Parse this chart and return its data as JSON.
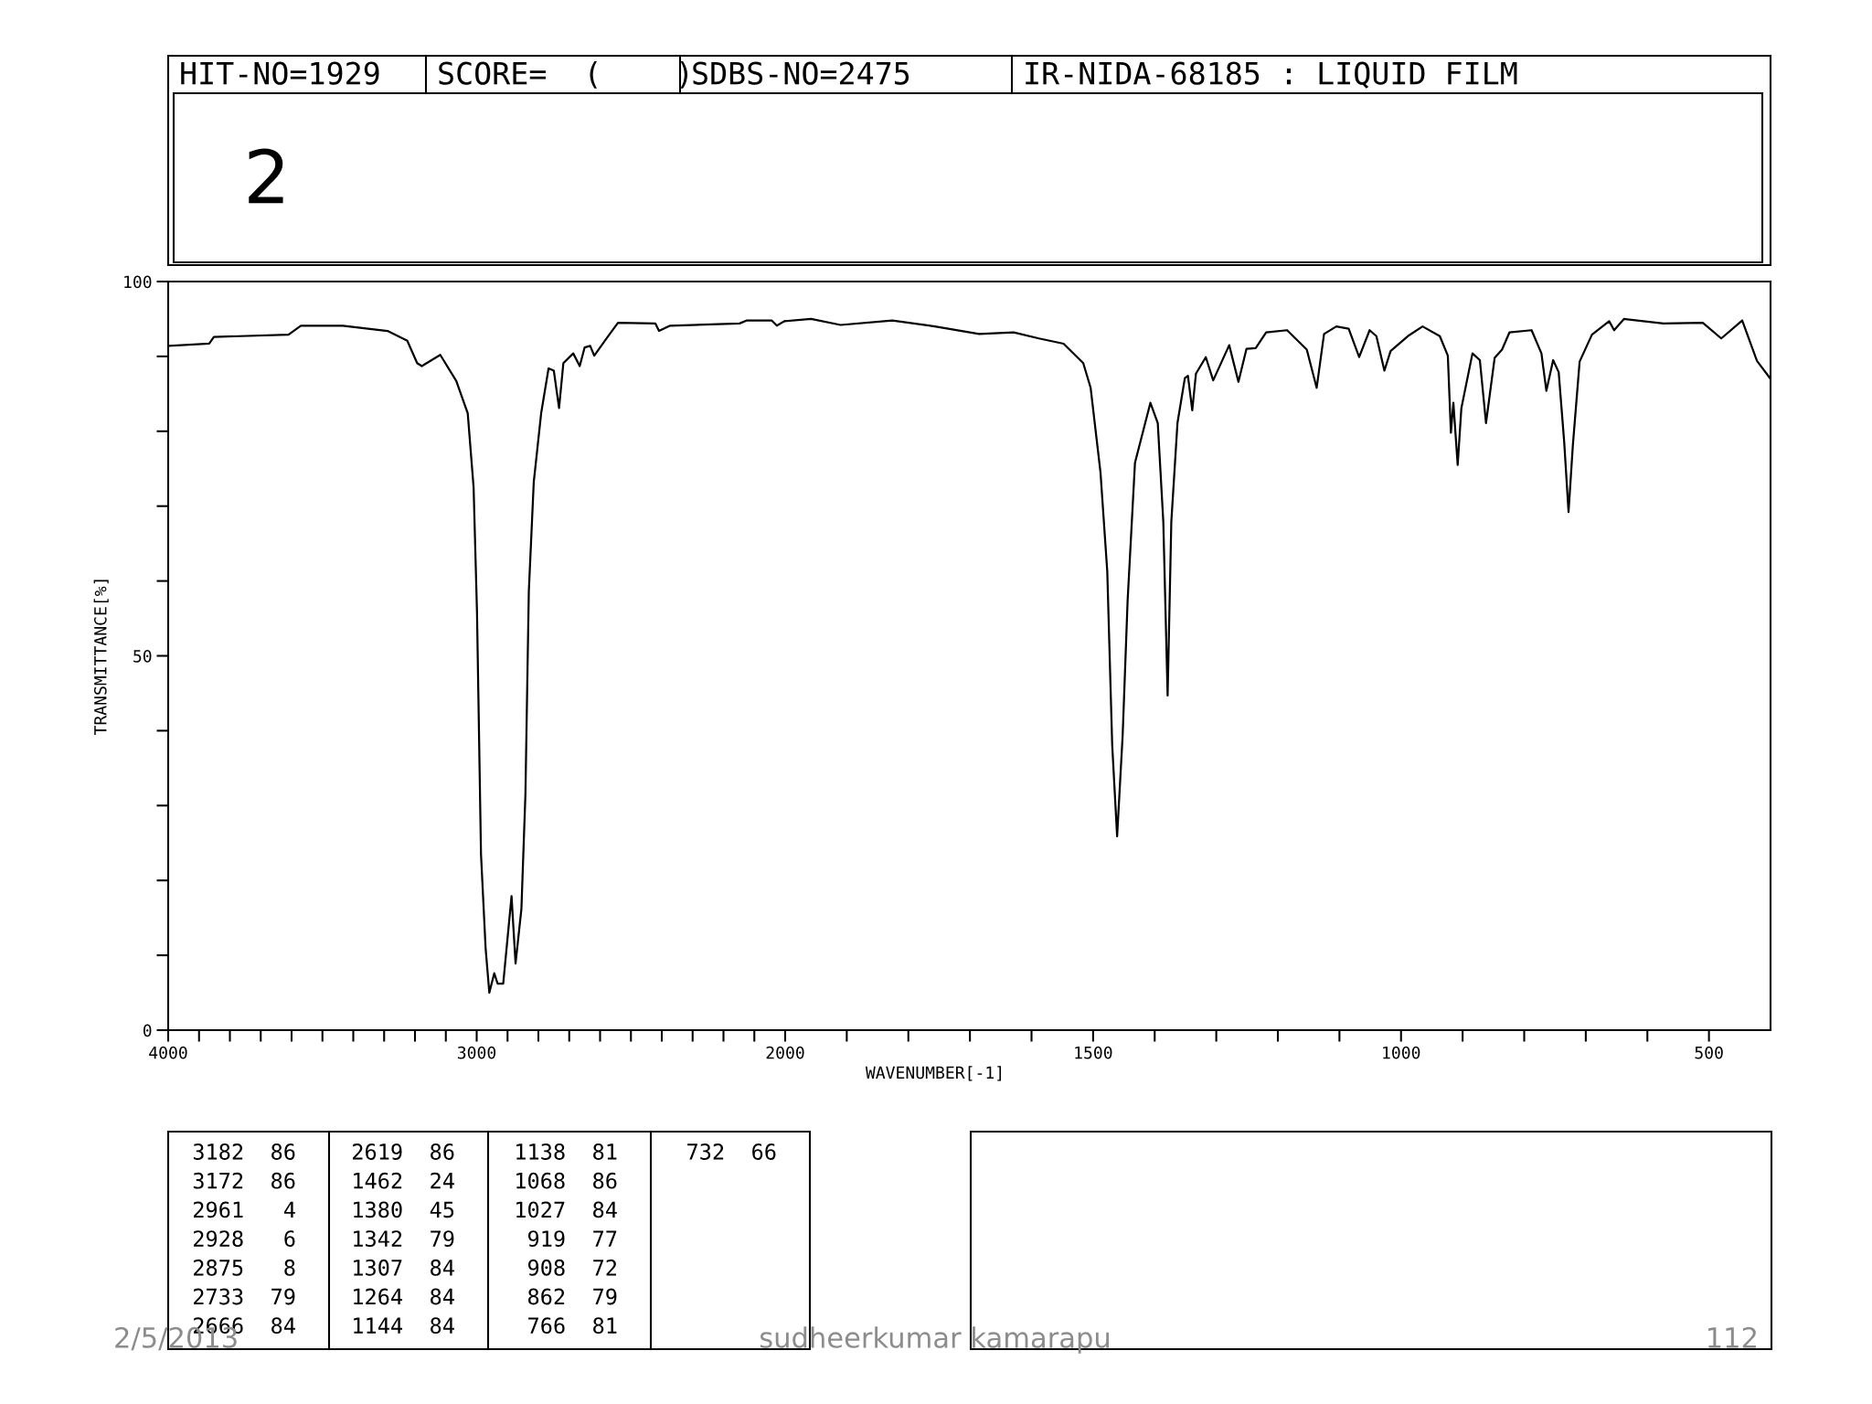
{
  "chart_data": [
    {
      "type": "line",
      "title": "2",
      "xlabel": "WAVENUMBER[-1]",
      "ylabel": "TRANSMITTANCE[%]",
      "xlim": [
        4000,
        2000
      ],
      "ylim": [
        0,
        100
      ],
      "xticks": [
        4000,
        {
          "value": 3900,
          "label": null
        },
        {
          "value": 3800,
          "label": null
        },
        {
          "value": 3700,
          "label": null
        },
        {
          "value": 3600,
          "label": null
        },
        {
          "value": 3500,
          "label": null
        },
        {
          "value": 3400,
          "label": null
        },
        {
          "value": 3300,
          "label": null
        },
        {
          "value": 3200,
          "label": null
        },
        {
          "value": 3100,
          "label": null
        },
        3000,
        {
          "value": 2900,
          "label": null
        },
        {
          "value": 2800,
          "label": null
        },
        {
          "value": 2700,
          "label": null
        },
        {
          "value": 2600,
          "label": null
        },
        {
          "value": 2500,
          "label": null
        },
        {
          "value": 2400,
          "label": null
        },
        {
          "value": 2300,
          "label": null
        },
        {
          "value": 2200,
          "label": null
        },
        {
          "value": 2100,
          "label": null
        },
        2000
      ],
      "yticks": [
        0,
        {
          "value": 10,
          "label": null
        },
        {
          "value": 20,
          "label": null
        },
        {
          "value": 30,
          "label": null
        },
        {
          "value": 40,
          "label": null
        },
        50,
        {
          "value": 60,
          "label": null
        },
        {
          "value": 70,
          "label": null
        },
        {
          "value": 80,
          "label": null
        },
        {
          "value": 90,
          "label": null
        },
        100
      ],
      "series": [
        {
          "color": "#000000",
          "x": [
            3996,
            3867,
            3852,
            3610,
            3570,
            3434,
            3289,
            3225,
            3193,
            3178,
            3118,
            3066,
            3029,
            3010,
            2999,
            2986,
            2971,
            2959,
            2943,
            2932,
            2914,
            2887,
            2874,
            2855,
            2842,
            2831,
            2815,
            2791,
            2767,
            2750,
            2733,
            2719,
            2687,
            2666,
            2650,
            2632,
            2619,
            2574,
            2542,
            2421,
            2409,
            2373,
            2148,
            2124,
            2044,
            2027,
            2003
          ],
          "values": [
            91.4,
            91.7,
            92.6,
            92.9,
            94.1,
            94.1,
            93.4,
            92.1,
            89.1,
            88.7,
            90.2,
            86.7,
            82.4,
            72.5,
            55.9,
            23.5,
            10.9,
            5.0,
            7.6,
            6.2,
            6.2,
            17.9,
            8.9,
            16.2,
            31.5,
            58.6,
            73.2,
            82.4,
            88.4,
            88.1,
            83.1,
            89.1,
            90.4,
            88.7,
            91.2,
            91.4,
            90.1,
            92.7,
            94.5,
            94.4,
            93.4,
            94.1,
            94.4,
            94.8,
            94.8,
            94.1,
            94.7
          ]
        }
      ],
      "annotations": [
        "HIT-NO=1929",
        "SCORE=  (    )",
        "SDBS-NO=2475",
        "IR-NIDA-68185 : LIQUID FILM",
        "3182  86",
        "3172  86",
        "2961   4",
        "2928   6",
        "2875   8",
        "2733  79",
        "2666  84",
        "2619  86",
        "1462  24",
        "1380  45",
        "1342  79",
        "1307  84",
        "1264  84",
        "1144  84",
        "1138  81",
        "1068  86",
        "1027  84",
        "919  77",
        "908  72",
        "862  79",
        "766  81",
        "732  66",
        "2/5/2013",
        "sudheerkumar kamarapu",
        "112"
      ]
    },
    {
      "type": "line",
      "tick_labels": "x",
      "xlim": [
        2000,
        400
      ],
      "ylim": [
        0,
        100
      ],
      "xticks": [
        {
          "value": 1900,
          "label": null
        },
        {
          "value": 1800,
          "label": null
        },
        {
          "value": 1700,
          "label": null
        },
        {
          "value": 1600,
          "label": null
        },
        1500,
        {
          "value": 1400,
          "label": null
        },
        {
          "value": 1300,
          "label": null
        },
        {
          "value": 1200,
          "label": null
        },
        {
          "value": 1100,
          "label": null
        },
        1000,
        {
          "value": 900,
          "label": null
        },
        {
          "value": 800,
          "label": null
        },
        {
          "value": 700,
          "label": null
        },
        {
          "value": 600,
          "label": null
        },
        500
      ],
      "series": [
        {
          "color": "#000000",
          "x": [
            2000,
            1958,
            1910,
            1826,
            1757,
            1685,
            1629,
            1588,
            1548,
            1516,
            1504,
            1488,
            1477,
            1469,
            1461,
            1452,
            1444,
            1432,
            1407,
            1395,
            1386,
            1379,
            1373,
            1363,
            1351,
            1346,
            1339,
            1333,
            1317,
            1305,
            1279,
            1264,
            1251,
            1236,
            1219,
            1185,
            1153,
            1137,
            1125,
            1105,
            1085,
            1068,
            1051,
            1040,
            1027,
            1017,
            989,
            965,
            937,
            924,
            919,
            915,
            908,
            902,
            884,
            872,
            862,
            848,
            836,
            824,
            788,
            772,
            764,
            753,
            744,
            735,
            728,
            721,
            710,
            690,
            662,
            654,
            638,
            574,
            510,
            480,
            446,
            422,
            401
          ],
          "values": [
            94.7,
            95.0,
            94.2,
            94.8,
            94.0,
            93.0,
            93.2,
            92.4,
            91.7,
            89.1,
            85.8,
            74.5,
            61.3,
            38.1,
            25.9,
            39.4,
            57.3,
            75.8,
            83.8,
            81.1,
            67.9,
            44.7,
            67.9,
            81.1,
            87.1,
            87.4,
            82.8,
            87.7,
            89.9,
            86.8,
            91.5,
            86.6,
            91.0,
            91.1,
            93.2,
            93.5,
            90.9,
            85.8,
            93.0,
            94.0,
            93.7,
            89.9,
            93.5,
            92.7,
            88.1,
            90.7,
            92.7,
            94.0,
            92.7,
            90.1,
            79.8,
            83.8,
            75.5,
            83.1,
            90.4,
            89.5,
            81.1,
            89.8,
            90.9,
            93.2,
            93.5,
            90.4,
            85.4,
            89.5,
            87.9,
            78.5,
            69.2,
            78.1,
            89.3,
            92.9,
            94.7,
            93.5,
            95.0,
            94.4,
            94.5,
            92.4,
            94.8,
            89.4,
            87.1
          ]
        }
      ]
    }
  ]
}
